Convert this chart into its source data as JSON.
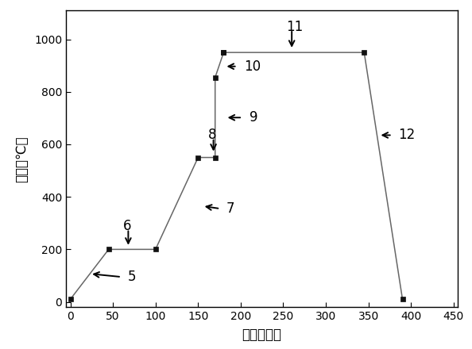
{
  "x_data": [
    0,
    45,
    100,
    150,
    170,
    170,
    180,
    180,
    345,
    390
  ],
  "y_data": [
    10,
    200,
    200,
    550,
    550,
    855,
    950,
    950,
    950,
    10
  ],
  "xlim": [
    -5,
    455
  ],
  "ylim": [
    -20,
    1110
  ],
  "xticks": [
    0,
    50,
    100,
    150,
    200,
    250,
    300,
    350,
    400,
    450
  ],
  "yticks": [
    0,
    200,
    400,
    600,
    800,
    1000
  ],
  "xlabel": "时间（秒）",
  "ylabel": "温度（℃）",
  "line_color": "#666666",
  "marker_color": "#111111",
  "marker_size": 5,
  "background_color": "#ffffff",
  "axis_fontsize": 12,
  "tick_fontsize": 10,
  "annot_fontsize": 12,
  "annotations": [
    {
      "label": "5",
      "txt_x": 67,
      "txt_y": 95,
      "tail_x": 60,
      "tail_y": 95,
      "head_x": 23,
      "head_y": 107
    },
    {
      "label": "6",
      "txt_x": 62,
      "txt_y": 290,
      "tail_x": 68,
      "tail_y": 278,
      "head_x": 68,
      "head_y": 208
    },
    {
      "label": "7",
      "txt_x": 183,
      "txt_y": 355,
      "tail_x": 176,
      "tail_y": 355,
      "head_x": 155,
      "head_y": 365
    },
    {
      "label": "8",
      "txt_x": 162,
      "txt_y": 637,
      "tail_x": 168,
      "tail_y": 625,
      "head_x": 168,
      "head_y": 565
    },
    {
      "label": "9",
      "txt_x": 210,
      "txt_y": 702,
      "tail_x": 202,
      "tail_y": 702,
      "head_x": 182,
      "head_y": 702
    },
    {
      "label": "10",
      "txt_x": 204,
      "txt_y": 897,
      "tail_x": 196,
      "tail_y": 897,
      "head_x": 181,
      "head_y": 897
    },
    {
      "label": "11",
      "txt_x": 253,
      "txt_y": 1048,
      "tail_x": 260,
      "tail_y": 1038,
      "head_x": 260,
      "head_y": 960
    },
    {
      "label": "12",
      "txt_x": 385,
      "txt_y": 635,
      "tail_x": 378,
      "tail_y": 635,
      "head_x": 362,
      "head_y": 635
    }
  ]
}
